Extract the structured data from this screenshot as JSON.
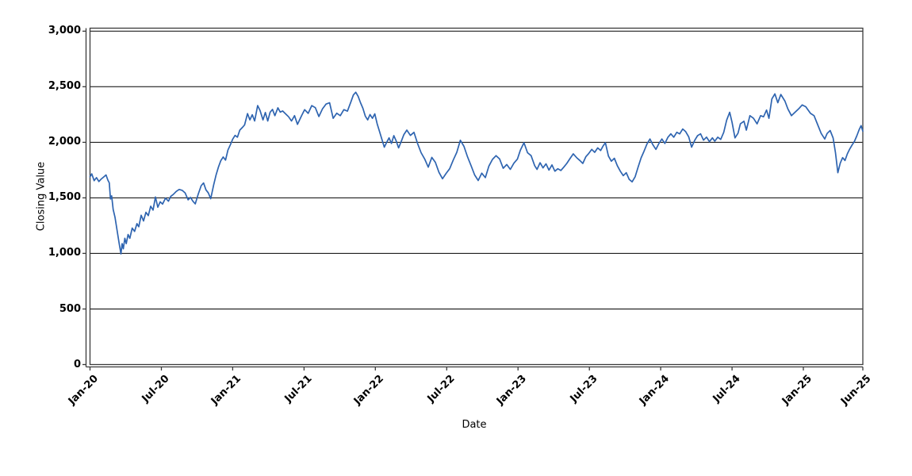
{
  "page": {
    "background": "#ffffff"
  },
  "chart_data": {
    "type": "line",
    "title": "",
    "xlabel": "Date",
    "ylabel": "Closing Value",
    "legend": "none",
    "grid": "horizontal-only",
    "grid_color": "#000000",
    "axis_color": "#3a3a3a",
    "ylim": [
      0,
      3000
    ],
    "y_ticks": [
      0,
      500,
      1000,
      1500,
      2000,
      2500,
      3000
    ],
    "y_tick_labels": [
      "0",
      "500",
      "1,000",
      "1,500",
      "2,000",
      "2,500",
      "3,000"
    ],
    "x_unit": "months since Jan-2020",
    "x_tick_months": [
      0,
      6,
      12,
      18,
      24,
      30,
      36,
      42,
      48,
      54,
      60,
      65
    ],
    "x_tick_labels": [
      "Jan-20",
      "Jul-20",
      "Jan-21",
      "Jul-21",
      "Jan-22",
      "Jul-22",
      "Jan-23",
      "Jul-23",
      "Jan-24",
      "Jul-24",
      "Jan-25",
      "Jun-25"
    ],
    "series": [
      {
        "name": "Closing Value",
        "color": "#2E64B0",
        "points": [
          [
            0,
            1690
          ],
          [
            0.15,
            1716
          ],
          [
            0.35,
            1655
          ],
          [
            0.55,
            1682
          ],
          [
            0.75,
            1647
          ],
          [
            0.95,
            1670
          ],
          [
            1.15,
            1688
          ],
          [
            1.35,
            1706
          ],
          [
            1.5,
            1660
          ],
          [
            1.62,
            1635
          ],
          [
            1.72,
            1490
          ],
          [
            1.82,
            1518
          ],
          [
            1.95,
            1396
          ],
          [
            2.1,
            1326
          ],
          [
            2.28,
            1205
          ],
          [
            2.45,
            1092
          ],
          [
            2.6,
            996
          ],
          [
            2.7,
            1088
          ],
          [
            2.8,
            1042
          ],
          [
            2.93,
            1136
          ],
          [
            3.05,
            1088
          ],
          [
            3.2,
            1170
          ],
          [
            3.35,
            1136
          ],
          [
            3.55,
            1228
          ],
          [
            3.75,
            1198
          ],
          [
            3.95,
            1268
          ],
          [
            4.1,
            1240
          ],
          [
            4.3,
            1344
          ],
          [
            4.5,
            1292
          ],
          [
            4.7,
            1370
          ],
          [
            4.9,
            1340
          ],
          [
            5.1,
            1424
          ],
          [
            5.3,
            1390
          ],
          [
            5.5,
            1508
          ],
          [
            5.7,
            1416
          ],
          [
            5.9,
            1464
          ],
          [
            6.1,
            1444
          ],
          [
            6.35,
            1498
          ],
          [
            6.6,
            1470
          ],
          [
            6.8,
            1514
          ],
          [
            7.0,
            1530
          ],
          [
            7.25,
            1558
          ],
          [
            7.5,
            1576
          ],
          [
            7.75,
            1568
          ],
          [
            8.0,
            1545
          ],
          [
            8.25,
            1482
          ],
          [
            8.45,
            1504
          ],
          [
            8.65,
            1470
          ],
          [
            8.85,
            1446
          ],
          [
            9.1,
            1532
          ],
          [
            9.35,
            1610
          ],
          [
            9.55,
            1634
          ],
          [
            9.75,
            1572
          ],
          [
            9.95,
            1544
          ],
          [
            10.15,
            1492
          ],
          [
            10.4,
            1616
          ],
          [
            10.6,
            1704
          ],
          [
            10.8,
            1776
          ],
          [
            11.0,
            1834
          ],
          [
            11.2,
            1868
          ],
          [
            11.4,
            1840
          ],
          [
            11.6,
            1930
          ],
          [
            11.8,
            1976
          ],
          [
            12.0,
            2028
          ],
          [
            12.2,
            2062
          ],
          [
            12.4,
            2046
          ],
          [
            12.6,
            2110
          ],
          [
            12.8,
            2132
          ],
          [
            13.0,
            2156
          ],
          [
            13.25,
            2258
          ],
          [
            13.45,
            2202
          ],
          [
            13.65,
            2248
          ],
          [
            13.85,
            2192
          ],
          [
            14.1,
            2330
          ],
          [
            14.3,
            2286
          ],
          [
            14.55,
            2202
          ],
          [
            14.75,
            2268
          ],
          [
            14.95,
            2192
          ],
          [
            15.15,
            2270
          ],
          [
            15.35,
            2296
          ],
          [
            15.55,
            2240
          ],
          [
            15.8,
            2310
          ],
          [
            16.0,
            2272
          ],
          [
            16.2,
            2282
          ],
          [
            16.45,
            2256
          ],
          [
            16.7,
            2230
          ],
          [
            16.95,
            2192
          ],
          [
            17.2,
            2240
          ],
          [
            17.45,
            2162
          ],
          [
            17.75,
            2230
          ],
          [
            18.05,
            2294
          ],
          [
            18.35,
            2260
          ],
          [
            18.65,
            2330
          ],
          [
            18.95,
            2312
          ],
          [
            19.25,
            2232
          ],
          [
            19.55,
            2300
          ],
          [
            19.85,
            2344
          ],
          [
            20.15,
            2356
          ],
          [
            20.45,
            2216
          ],
          [
            20.75,
            2262
          ],
          [
            21.05,
            2240
          ],
          [
            21.35,
            2294
          ],
          [
            21.65,
            2280
          ],
          [
            21.95,
            2366
          ],
          [
            22.15,
            2426
          ],
          [
            22.35,
            2450
          ],
          [
            22.55,
            2414
          ],
          [
            22.75,
            2356
          ],
          [
            22.95,
            2306
          ],
          [
            23.15,
            2236
          ],
          [
            23.35,
            2202
          ],
          [
            23.55,
            2250
          ],
          [
            23.75,
            2216
          ],
          [
            23.95,
            2256
          ],
          [
            24.15,
            2166
          ],
          [
            24.35,
            2096
          ],
          [
            24.55,
            2026
          ],
          [
            24.75,
            1956
          ],
          [
            24.95,
            2000
          ],
          [
            25.15,
            2040
          ],
          [
            25.35,
            1990
          ],
          [
            25.55,
            2060
          ],
          [
            25.75,
            2012
          ],
          [
            25.95,
            1950
          ],
          [
            26.15,
            2000
          ],
          [
            26.4,
            2070
          ],
          [
            26.65,
            2110
          ],
          [
            26.95,
            2062
          ],
          [
            27.25,
            2090
          ],
          [
            27.55,
            1990
          ],
          [
            27.85,
            1906
          ],
          [
            28.15,
            1850
          ],
          [
            28.45,
            1776
          ],
          [
            28.75,
            1864
          ],
          [
            29.05,
            1820
          ],
          [
            29.35,
            1730
          ],
          [
            29.65,
            1672
          ],
          [
            29.95,
            1720
          ],
          [
            30.25,
            1762
          ],
          [
            30.55,
            1840
          ],
          [
            30.85,
            1910
          ],
          [
            31.15,
            2018
          ],
          [
            31.45,
            1964
          ],
          [
            31.75,
            1870
          ],
          [
            32.05,
            1790
          ],
          [
            32.35,
            1706
          ],
          [
            32.65,
            1656
          ],
          [
            32.95,
            1722
          ],
          [
            33.25,
            1682
          ],
          [
            33.55,
            1786
          ],
          [
            33.85,
            1846
          ],
          [
            34.15,
            1880
          ],
          [
            34.45,
            1850
          ],
          [
            34.75,
            1766
          ],
          [
            35.05,
            1800
          ],
          [
            35.35,
            1756
          ],
          [
            35.65,
            1812
          ],
          [
            35.95,
            1850
          ],
          [
            36.2,
            1930
          ],
          [
            36.5,
            1996
          ],
          [
            36.8,
            1906
          ],
          [
            37.1,
            1880
          ],
          [
            37.4,
            1790
          ],
          [
            37.6,
            1756
          ],
          [
            37.85,
            1816
          ],
          [
            38.1,
            1770
          ],
          [
            38.35,
            1806
          ],
          [
            38.6,
            1750
          ],
          [
            38.85,
            1796
          ],
          [
            39.1,
            1740
          ],
          [
            39.35,
            1762
          ],
          [
            39.6,
            1746
          ],
          [
            39.85,
            1776
          ],
          [
            40.1,
            1810
          ],
          [
            40.35,
            1850
          ],
          [
            40.65,
            1896
          ],
          [
            40.95,
            1860
          ],
          [
            41.2,
            1836
          ],
          [
            41.45,
            1810
          ],
          [
            41.7,
            1870
          ],
          [
            41.95,
            1900
          ],
          [
            42.2,
            1936
          ],
          [
            42.45,
            1910
          ],
          [
            42.7,
            1950
          ],
          [
            42.95,
            1926
          ],
          [
            43.15,
            1966
          ],
          [
            43.35,
            1996
          ],
          [
            43.6,
            1876
          ],
          [
            43.85,
            1830
          ],
          [
            44.1,
            1856
          ],
          [
            44.35,
            1790
          ],
          [
            44.6,
            1740
          ],
          [
            44.85,
            1700
          ],
          [
            45.1,
            1726
          ],
          [
            45.35,
            1666
          ],
          [
            45.6,
            1644
          ],
          [
            45.85,
            1690
          ],
          [
            46.1,
            1776
          ],
          [
            46.35,
            1860
          ],
          [
            46.6,
            1920
          ],
          [
            46.85,
            1986
          ],
          [
            47.1,
            2030
          ],
          [
            47.35,
            1976
          ],
          [
            47.6,
            1936
          ],
          [
            47.85,
            1990
          ],
          [
            48.1,
            2030
          ],
          [
            48.35,
            1990
          ],
          [
            48.6,
            2044
          ],
          [
            48.85,
            2076
          ],
          [
            49.1,
            2046
          ],
          [
            49.35,
            2090
          ],
          [
            49.6,
            2076
          ],
          [
            49.85,
            2120
          ],
          [
            50.1,
            2096
          ],
          [
            50.35,
            2050
          ],
          [
            50.6,
            1956
          ],
          [
            50.85,
            2016
          ],
          [
            51.1,
            2060
          ],
          [
            51.35,
            2076
          ],
          [
            51.6,
            2020
          ],
          [
            51.85,
            2046
          ],
          [
            52.1,
            2006
          ],
          [
            52.35,
            2040
          ],
          [
            52.55,
            2010
          ],
          [
            52.8,
            2046
          ],
          [
            53.05,
            2026
          ],
          [
            53.3,
            2090
          ],
          [
            53.55,
            2200
          ],
          [
            53.8,
            2270
          ],
          [
            54.0,
            2180
          ],
          [
            54.25,
            2040
          ],
          [
            54.5,
            2082
          ],
          [
            54.7,
            2166
          ],
          [
            55.0,
            2190
          ],
          [
            55.2,
            2110
          ],
          [
            55.5,
            2240
          ],
          [
            55.8,
            2216
          ],
          [
            56.1,
            2166
          ],
          [
            56.4,
            2240
          ],
          [
            56.65,
            2230
          ],
          [
            56.9,
            2290
          ],
          [
            57.1,
            2216
          ],
          [
            57.35,
            2390
          ],
          [
            57.6,
            2436
          ],
          [
            57.85,
            2356
          ],
          [
            58.1,
            2430
          ],
          [
            58.45,
            2370
          ],
          [
            58.7,
            2300
          ],
          [
            59.0,
            2240
          ],
          [
            59.3,
            2270
          ],
          [
            59.6,
            2300
          ],
          [
            59.9,
            2336
          ],
          [
            60.2,
            2320
          ],
          [
            60.6,
            2260
          ],
          [
            60.9,
            2240
          ],
          [
            61.2,
            2160
          ],
          [
            61.5,
            2080
          ],
          [
            61.8,
            2030
          ],
          [
            62.0,
            2080
          ],
          [
            62.25,
            2106
          ],
          [
            62.5,
            2040
          ],
          [
            62.7,
            1906
          ],
          [
            62.9,
            1726
          ],
          [
            63.1,
            1812
          ],
          [
            63.3,
            1862
          ],
          [
            63.5,
            1836
          ],
          [
            63.7,
            1896
          ],
          [
            63.9,
            1940
          ],
          [
            64.1,
            1976
          ],
          [
            64.3,
            2010
          ],
          [
            64.5,
            2060
          ],
          [
            64.7,
            2116
          ],
          [
            64.85,
            2150
          ],
          [
            65.0,
            2100
          ]
        ]
      }
    ]
  }
}
